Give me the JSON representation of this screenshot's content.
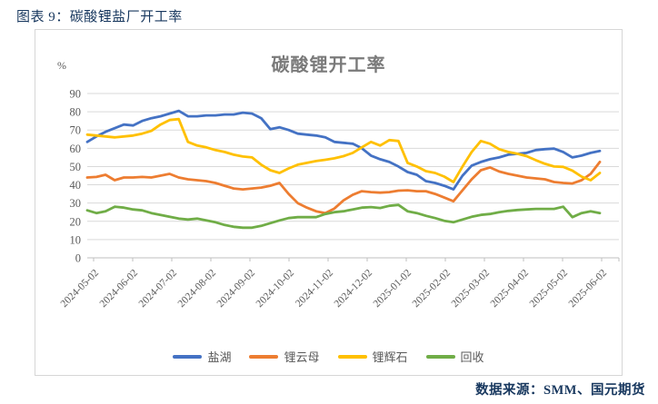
{
  "header": {
    "title": "图表 9：碳酸锂盐厂开工率"
  },
  "footer": {
    "source": "数据来源：SMM、国元期货"
  },
  "chart_data": {
    "type": "line",
    "title": "碳酸锂开工率",
    "y_unit_label": "%",
    "ylim": [
      0,
      90
    ],
    "y_ticks": [
      90,
      80,
      70,
      60,
      50,
      40,
      30,
      20,
      10,
      0
    ],
    "grid": true,
    "legend_position": "bottom",
    "x_tick_labels": [
      "2024-05-02",
      "2024-06-02",
      "2024-07-02",
      "2024-08-02",
      "2024-09-02",
      "2024-10-02",
      "2024-11-02",
      "2024-12-02",
      "2025-01-02",
      "2025-02-02",
      "2025-03-02",
      "2025-04-02",
      "2025-05-02",
      "2025-06-02"
    ],
    "series": [
      {
        "name": "盐湖",
        "slug": "salt-lake",
        "color": "#4472C4",
        "values": [
          63.5,
          66.5,
          69,
          71,
          73,
          72.5,
          75,
          76.5,
          77.5,
          79,
          80.5,
          77.5,
          77.5,
          78,
          78,
          78.5,
          78.5,
          79.5,
          79,
          76.5,
          70.5,
          71.5,
          70,
          68,
          67.5,
          67,
          66,
          63.5,
          63,
          62.5,
          60,
          56,
          54,
          52.5,
          50,
          47,
          45.5,
          42,
          41,
          39.5,
          37.5,
          45,
          50.5,
          52.5,
          54,
          55,
          56.5,
          57,
          57.5,
          59,
          59.5,
          59.8,
          58,
          55,
          56,
          57.5,
          58.5
        ]
      },
      {
        "name": "锂云母",
        "slug": "lepidolite",
        "color": "#ED7D31",
        "values": [
          44,
          44.3,
          45.5,
          42.5,
          44,
          44,
          44.3,
          44,
          45,
          46,
          44,
          43,
          42.5,
          42,
          41,
          39.5,
          38,
          37.5,
          38,
          38.5,
          39.5,
          41,
          35,
          30,
          27.5,
          25.5,
          24.5,
          27,
          31.5,
          34.5,
          36.5,
          36,
          35.7,
          36,
          36.8,
          37,
          36.5,
          36.5,
          35,
          33,
          31,
          37,
          43,
          48,
          49.5,
          47.3,
          46,
          45,
          44,
          43.5,
          43,
          41.5,
          41,
          40.7,
          42.5,
          46,
          52.5
        ]
      },
      {
        "name": "锂辉石",
        "slug": "spodumene",
        "color": "#FFC000",
        "values": [
          67.5,
          67,
          66.5,
          66,
          66.5,
          67,
          68,
          69.5,
          73,
          75.5,
          76,
          63.5,
          61.5,
          60.5,
          59,
          58,
          56.5,
          55.5,
          55,
          51,
          48,
          46.5,
          49,
          51,
          52,
          53,
          53.7,
          54.5,
          55.7,
          57.5,
          60.5,
          63.5,
          61.5,
          64.5,
          64,
          52,
          50,
          47.5,
          46.5,
          44.5,
          41.5,
          50,
          58,
          64,
          62.5,
          59.5,
          58,
          57,
          55.7,
          53.5,
          51.5,
          50,
          49.8,
          47.8,
          44.5,
          42.5,
          46.5
        ]
      },
      {
        "name": "回收",
        "slug": "recycling",
        "color": "#70AD47",
        "values": [
          26,
          24.5,
          25.5,
          28,
          27.5,
          26.5,
          26,
          24.5,
          23.5,
          22.5,
          21.5,
          21,
          21.5,
          20.5,
          19.5,
          18,
          17,
          16.5,
          16.5,
          17.5,
          19,
          20.5,
          21.8,
          22.3,
          22.3,
          22.3,
          24,
          25,
          25.5,
          26.5,
          27.5,
          27.8,
          27.3,
          28.5,
          29,
          25.5,
          24.5,
          23,
          21.8,
          20.3,
          19.5,
          21,
          22.5,
          23.5,
          24,
          25,
          25.7,
          26.2,
          26.5,
          26.8,
          26.8,
          26.8,
          28,
          22.3,
          24.5,
          25.5,
          24.5
        ]
      }
    ],
    "style": {
      "grid_color": "#D9D9D9",
      "axis_color": "#BFBFBF",
      "tick_label_color": "#595959",
      "line_width": 2.8
    }
  }
}
